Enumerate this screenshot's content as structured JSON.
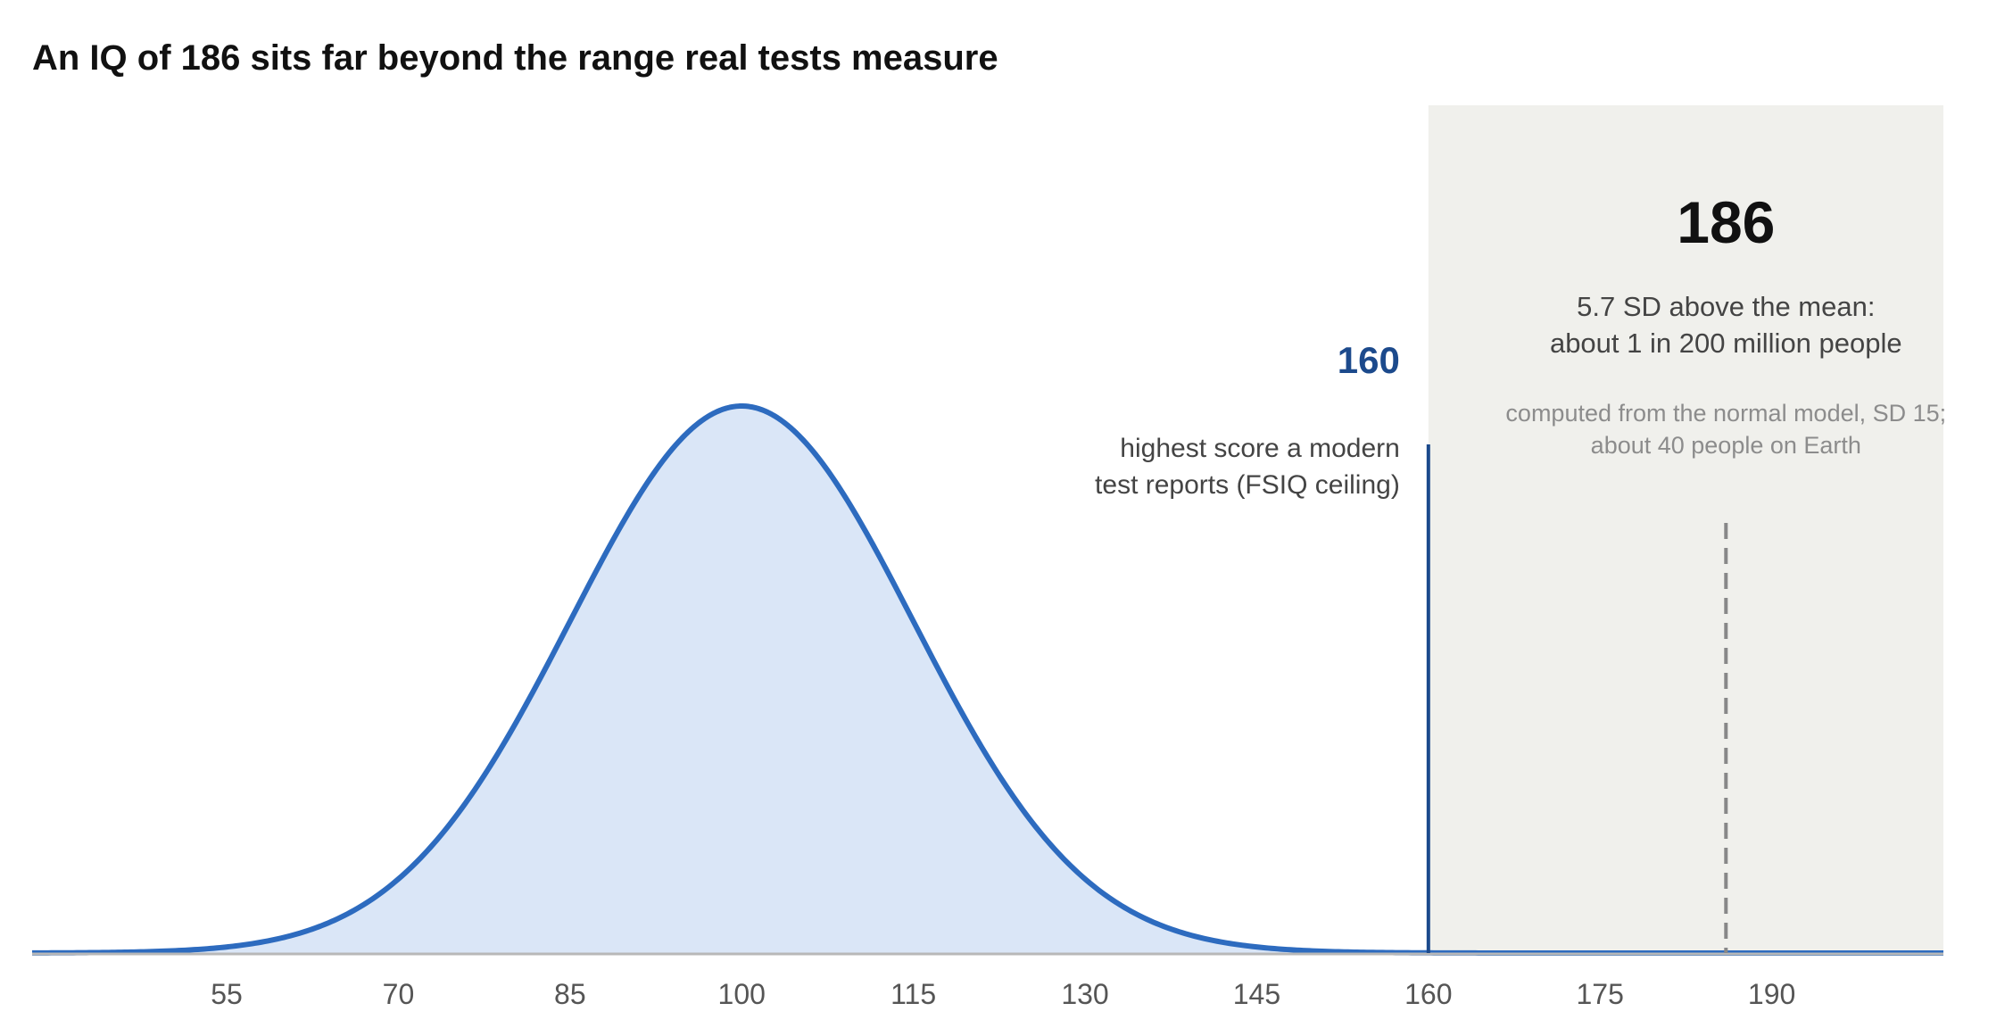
{
  "chart_data": {
    "type": "area",
    "title": "An IQ of 186 sits far beyond the range real tests measure",
    "xlabel": "",
    "ylabel": "",
    "xlim": [
      38,
      205
    ],
    "x_ticks": [
      55,
      70,
      85,
      100,
      115,
      130,
      145,
      160,
      175,
      190
    ],
    "grid": false,
    "distribution": {
      "kind": "normal",
      "mean": 100,
      "sd": 15
    },
    "ceiling": {
      "x": 160,
      "label": "160",
      "note_lines": [
        "highest score a modern",
        "test reports (FSIQ ceiling)"
      ]
    },
    "highlight_region": {
      "from": 160,
      "to": 205
    },
    "marker": {
      "x": 186,
      "label": "186",
      "note_lines": [
        "5.7 SD above the mean:",
        "about 1 in 200 million people"
      ],
      "sub_note_lines": [
        "computed from the normal model, SD 15;",
        "about 40 people on Earth"
      ]
    },
    "colors": {
      "curve": "#2d6bbf",
      "fill": "#dae6f7",
      "ceiling": "#1c4a8c",
      "region": "#f0f0ec",
      "marker": "#888888",
      "axis": "#b8b8b8"
    }
  }
}
